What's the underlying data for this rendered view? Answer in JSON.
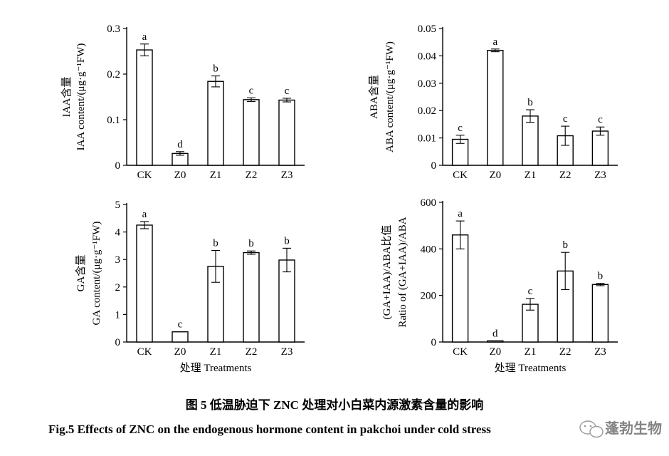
{
  "chart_data": [
    {
      "type": "bar",
      "ylabel_cn": "IAA含量",
      "ylabel_en": "IAA content/(μg·g⁻¹FW)",
      "xlabel": "",
      "categories": [
        "CK",
        "Z0",
        "Z1",
        "Z2",
        "Z3"
      ],
      "values": [
        0.253,
        0.026,
        0.184,
        0.144,
        0.143
      ],
      "errors": [
        0.013,
        0.004,
        0.012,
        0.004,
        0.004
      ],
      "letters": [
        "a",
        "d",
        "b",
        "c",
        "c"
      ],
      "ylim": [
        0,
        0.3
      ],
      "yticks": [
        0,
        0.1,
        0.2,
        0.3
      ],
      "ytick_labels": [
        "0",
        "0.1",
        "0.2",
        "0.3"
      ]
    },
    {
      "type": "bar",
      "ylabel_cn": "ABA含量",
      "ylabel_en": "ABA content/(μg·g⁻¹FW)",
      "xlabel": "",
      "categories": [
        "CK",
        "Z0",
        "Z1",
        "Z2",
        "Z3"
      ],
      "values": [
        0.0095,
        0.042,
        0.018,
        0.0108,
        0.0125
      ],
      "errors": [
        0.0015,
        0.0005,
        0.0023,
        0.0035,
        0.0015
      ],
      "letters": [
        "c",
        "a",
        "b",
        "c",
        "c"
      ],
      "ylim": [
        0,
        0.05
      ],
      "yticks": [
        0,
        0.01,
        0.02,
        0.03,
        0.04,
        0.05
      ],
      "ytick_labels": [
        "0",
        "0.01",
        "0.02",
        "0.03",
        "0.04",
        "0.05"
      ]
    },
    {
      "type": "bar",
      "ylabel_cn": "GA含量",
      "ylabel_en": "GA content/(μg·g⁻¹FW)",
      "xlabel": "处理  Treatments",
      "categories": [
        "CK",
        "Z0",
        "Z1",
        "Z2",
        "Z3"
      ],
      "values": [
        4.25,
        0.37,
        2.75,
        3.25,
        2.98
      ],
      "errors": [
        0.13,
        0,
        0.58,
        0.06,
        0.43
      ],
      "letters": [
        "a",
        "c",
        "b",
        "b",
        "b"
      ],
      "ylim": [
        0,
        5
      ],
      "yticks": [
        0,
        1,
        2,
        3,
        4,
        5
      ],
      "ytick_labels": [
        "0",
        "1",
        "2",
        "3",
        "4",
        "5"
      ]
    },
    {
      "type": "bar",
      "ylabel_cn": "(GA+IAA)/ABA比值",
      "ylabel_en": "Ratio of (GA+IAA)/ABA",
      "xlabel": "处理  Treatments",
      "categories": [
        "CK",
        "Z0",
        "Z1",
        "Z2",
        "Z3"
      ],
      "values": [
        460,
        5,
        162,
        305,
        247
      ],
      "errors": [
        60,
        0,
        25,
        80,
        5
      ],
      "letters": [
        "a",
        "d",
        "c",
        "b",
        "b"
      ],
      "ylim": [
        0,
        600
      ],
      "yticks": [
        0,
        200,
        400,
        600
      ],
      "ytick_labels": [
        "0",
        "200",
        "400",
        "600"
      ]
    }
  ],
  "caption": {
    "cn": "图 5   低温胁迫下 ZNC 处理对小白菜内源激素含量的影响",
    "en": "Fig.5    Effects of ZNC on the endogenous hormone content in pakchoi under cold stress"
  },
  "watermark": "蓬勃生物"
}
